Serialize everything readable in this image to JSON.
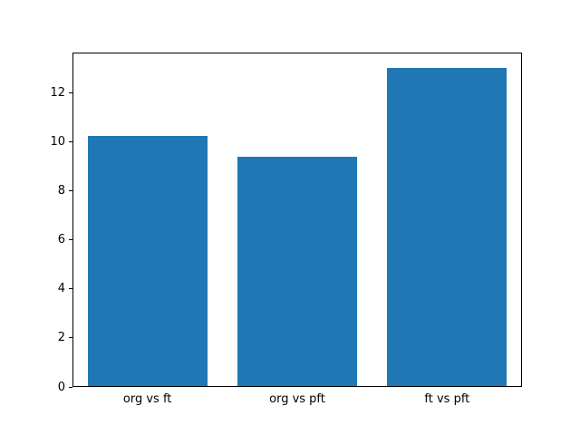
{
  "chart_data": {
    "type": "bar",
    "title": "",
    "xlabel": "",
    "ylabel": "",
    "categories": [
      "org vs ft",
      "org vs pft",
      "ft vs pft"
    ],
    "values": [
      10.2,
      9.35,
      13.0
    ],
    "yticks": [
      0,
      2,
      4,
      6,
      8,
      10,
      12
    ],
    "ylim": [
      0,
      13.65
    ],
    "bar_color": "#1f77b4",
    "bar_width_fraction": 0.8,
    "grid": false,
    "legend": null
  }
}
